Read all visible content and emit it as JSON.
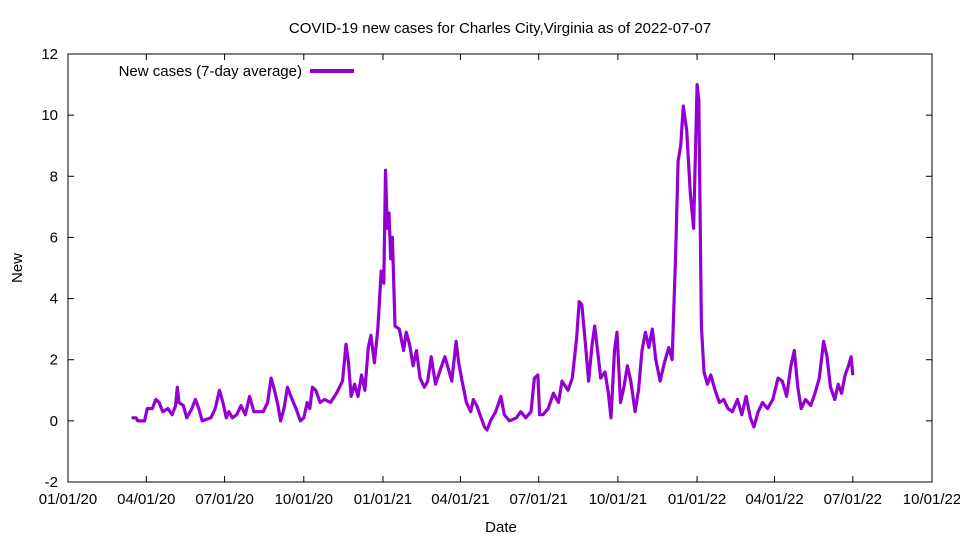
{
  "chart_data": {
    "type": "line",
    "title": "COVID-19 new cases for Charles City,Virginia as of 2022-07-07",
    "xlabel": "Date",
    "ylabel": "New",
    "ylim": [
      -2,
      12
    ],
    "yticks": [
      -2,
      0,
      2,
      4,
      6,
      8,
      10,
      12
    ],
    "ytick_labels": [
      "-2",
      "0",
      "2",
      "4",
      "6",
      "8",
      "10",
      "12"
    ],
    "xlim": [
      "2020-01-01",
      "2022-10-01"
    ],
    "xticks": [
      "2020-01-01",
      "2020-04-01",
      "2020-07-01",
      "2020-10-01",
      "2021-01-01",
      "2021-04-01",
      "2021-07-01",
      "2021-10-01",
      "2022-01-01",
      "2022-04-01",
      "2022-07-01",
      "2022-10-01"
    ],
    "xtick_labels": [
      "01/01/20",
      "04/01/20",
      "07/01/20",
      "10/01/20",
      "01/01/21",
      "04/01/21",
      "07/01/21",
      "10/01/21",
      "01/01/22",
      "04/01/22",
      "07/01/22",
      "10/01/22"
    ],
    "legend_position": "top-left",
    "grid": false,
    "series": [
      {
        "name": "New cases (7-day average)",
        "color": "#9400d3",
        "points": [
          [
            "2020-03-15",
            0.1
          ],
          [
            "2020-03-20",
            0.1
          ],
          [
            "2020-03-22",
            0.0
          ],
          [
            "2020-03-30",
            0.0
          ],
          [
            "2020-04-02",
            0.4
          ],
          [
            "2020-04-08",
            0.4
          ],
          [
            "2020-04-12",
            0.7
          ],
          [
            "2020-04-16",
            0.6
          ],
          [
            "2020-04-20",
            0.3
          ],
          [
            "2020-04-26",
            0.4
          ],
          [
            "2020-05-01",
            0.2
          ],
          [
            "2020-05-05",
            0.5
          ],
          [
            "2020-05-07",
            1.1
          ],
          [
            "2020-05-09",
            0.6
          ],
          [
            "2020-05-14",
            0.5
          ],
          [
            "2020-05-18",
            0.1
          ],
          [
            "2020-05-24",
            0.4
          ],
          [
            "2020-05-28",
            0.7
          ],
          [
            "2020-06-01",
            0.4
          ],
          [
            "2020-06-05",
            0.0
          ],
          [
            "2020-06-15",
            0.1
          ],
          [
            "2020-06-20",
            0.4
          ],
          [
            "2020-06-25",
            1.0
          ],
          [
            "2020-06-29",
            0.6
          ],
          [
            "2020-07-03",
            0.1
          ],
          [
            "2020-07-06",
            0.3
          ],
          [
            "2020-07-10",
            0.1
          ],
          [
            "2020-07-15",
            0.2
          ],
          [
            "2020-07-20",
            0.5
          ],
          [
            "2020-07-25",
            0.2
          ],
          [
            "2020-07-30",
            0.8
          ],
          [
            "2020-08-04",
            0.3
          ],
          [
            "2020-08-15",
            0.3
          ],
          [
            "2020-08-20",
            0.6
          ],
          [
            "2020-08-24",
            1.4
          ],
          [
            "2020-08-28",
            1.0
          ],
          [
            "2020-09-01",
            0.5
          ],
          [
            "2020-09-04",
            0.0
          ],
          [
            "2020-09-08",
            0.4
          ],
          [
            "2020-09-12",
            1.1
          ],
          [
            "2020-09-16",
            0.8
          ],
          [
            "2020-09-22",
            0.4
          ],
          [
            "2020-09-27",
            0.0
          ],
          [
            "2020-10-01",
            0.1
          ],
          [
            "2020-10-05",
            0.6
          ],
          [
            "2020-10-08",
            0.4
          ],
          [
            "2020-10-11",
            1.1
          ],
          [
            "2020-10-15",
            1.0
          ],
          [
            "2020-10-20",
            0.6
          ],
          [
            "2020-10-25",
            0.7
          ],
          [
            "2020-11-01",
            0.6
          ],
          [
            "2020-11-08",
            0.9
          ],
          [
            "2020-11-15",
            1.3
          ],
          [
            "2020-11-19",
            2.5
          ],
          [
            "2020-11-22",
            1.9
          ],
          [
            "2020-11-25",
            0.8
          ],
          [
            "2020-11-29",
            1.2
          ],
          [
            "2020-12-03",
            0.8
          ],
          [
            "2020-12-07",
            1.5
          ],
          [
            "2020-12-11",
            1.0
          ],
          [
            "2020-12-15",
            2.4
          ],
          [
            "2020-12-18",
            2.8
          ],
          [
            "2020-12-22",
            1.9
          ],
          [
            "2020-12-26",
            3.0
          ],
          [
            "2020-12-30",
            4.9
          ],
          [
            "2021-01-02",
            4.5
          ],
          [
            "2021-01-04",
            8.2
          ],
          [
            "2021-01-06",
            6.3
          ],
          [
            "2021-01-08",
            6.8
          ],
          [
            "2021-01-10",
            5.3
          ],
          [
            "2021-01-12",
            6.0
          ],
          [
            "2021-01-15",
            3.1
          ],
          [
            "2021-01-20",
            3.0
          ],
          [
            "2021-01-25",
            2.3
          ],
          [
            "2021-01-28",
            2.9
          ],
          [
            "2021-02-01",
            2.5
          ],
          [
            "2021-02-05",
            1.8
          ],
          [
            "2021-02-09",
            2.3
          ],
          [
            "2021-02-13",
            1.4
          ],
          [
            "2021-02-18",
            1.1
          ],
          [
            "2021-02-22",
            1.3
          ],
          [
            "2021-02-26",
            2.1
          ],
          [
            "2021-03-03",
            1.2
          ],
          [
            "2021-03-09",
            1.7
          ],
          [
            "2021-03-14",
            2.1
          ],
          [
            "2021-03-18",
            1.7
          ],
          [
            "2021-03-22",
            1.3
          ],
          [
            "2021-03-27",
            2.6
          ],
          [
            "2021-03-30",
            1.9
          ],
          [
            "2021-04-03",
            1.3
          ],
          [
            "2021-04-08",
            0.6
          ],
          [
            "2021-04-13",
            0.3
          ],
          [
            "2021-04-16",
            0.7
          ],
          [
            "2021-04-20",
            0.5
          ],
          [
            "2021-04-25",
            0.1
          ],
          [
            "2021-04-29",
            -0.2
          ],
          [
            "2021-05-02",
            -0.3
          ],
          [
            "2021-05-06",
            0.0
          ],
          [
            "2021-05-12",
            0.3
          ],
          [
            "2021-05-18",
            0.8
          ],
          [
            "2021-05-22",
            0.2
          ],
          [
            "2021-05-28",
            0.0
          ],
          [
            "2021-06-05",
            0.1
          ],
          [
            "2021-06-10",
            0.3
          ],
          [
            "2021-06-16",
            0.1
          ],
          [
            "2021-06-22",
            0.3
          ],
          [
            "2021-06-26",
            1.4
          ],
          [
            "2021-06-30",
            1.5
          ],
          [
            "2021-07-02",
            0.2
          ],
          [
            "2021-07-06",
            0.2
          ],
          [
            "2021-07-12",
            0.4
          ],
          [
            "2021-07-18",
            0.9
          ],
          [
            "2021-07-24",
            0.6
          ],
          [
            "2021-07-28",
            1.3
          ],
          [
            "2021-08-04",
            1.0
          ],
          [
            "2021-08-09",
            1.4
          ],
          [
            "2021-08-14",
            2.7
          ],
          [
            "2021-08-17",
            3.9
          ],
          [
            "2021-08-20",
            3.8
          ],
          [
            "2021-08-24",
            2.6
          ],
          [
            "2021-08-28",
            1.3
          ],
          [
            "2021-09-01",
            2.5
          ],
          [
            "2021-09-04",
            3.1
          ],
          [
            "2021-09-07",
            2.4
          ],
          [
            "2021-09-11",
            1.4
          ],
          [
            "2021-09-16",
            1.6
          ],
          [
            "2021-09-20",
            0.9
          ],
          [
            "2021-09-23",
            0.1
          ],
          [
            "2021-09-27",
            2.3
          ],
          [
            "2021-09-30",
            2.9
          ],
          [
            "2021-10-04",
            0.6
          ],
          [
            "2021-10-08",
            1.1
          ],
          [
            "2021-10-12",
            1.8
          ],
          [
            "2021-10-16",
            1.3
          ],
          [
            "2021-10-21",
            0.3
          ],
          [
            "2021-10-25",
            1.0
          ],
          [
            "2021-10-29",
            2.3
          ],
          [
            "2021-11-02",
            2.9
          ],
          [
            "2021-11-06",
            2.4
          ],
          [
            "2021-11-10",
            3.0
          ],
          [
            "2021-11-14",
            2.0
          ],
          [
            "2021-11-19",
            1.3
          ],
          [
            "2021-11-24",
            1.9
          ],
          [
            "2021-11-29",
            2.4
          ],
          [
            "2021-12-03",
            2.0
          ],
          [
            "2021-12-07",
            5.4
          ],
          [
            "2021-12-10",
            8.5
          ],
          [
            "2021-12-13",
            9.0
          ],
          [
            "2021-12-16",
            10.3
          ],
          [
            "2021-12-20",
            9.5
          ],
          [
            "2021-12-24",
            7.5
          ],
          [
            "2021-12-28",
            6.3
          ],
          [
            "2022-01-01",
            11.0
          ],
          [
            "2022-01-03",
            10.5
          ],
          [
            "2022-01-06",
            3.1
          ],
          [
            "2022-01-09",
            1.6
          ],
          [
            "2022-01-13",
            1.2
          ],
          [
            "2022-01-17",
            1.5
          ],
          [
            "2022-01-22",
            1.0
          ],
          [
            "2022-01-27",
            0.6
          ],
          [
            "2022-02-01",
            0.7
          ],
          [
            "2022-02-06",
            0.4
          ],
          [
            "2022-02-11",
            0.3
          ],
          [
            "2022-02-17",
            0.7
          ],
          [
            "2022-02-22",
            0.2
          ],
          [
            "2022-02-27",
            0.8
          ],
          [
            "2022-03-04",
            0.1
          ],
          [
            "2022-03-08",
            -0.2
          ],
          [
            "2022-03-13",
            0.3
          ],
          [
            "2022-03-18",
            0.6
          ],
          [
            "2022-03-24",
            0.4
          ],
          [
            "2022-03-30",
            0.7
          ],
          [
            "2022-04-05",
            1.4
          ],
          [
            "2022-04-10",
            1.3
          ],
          [
            "2022-04-15",
            0.8
          ],
          [
            "2022-04-20",
            1.8
          ],
          [
            "2022-04-24",
            2.3
          ],
          [
            "2022-04-28",
            1.1
          ],
          [
            "2022-05-02",
            0.4
          ],
          [
            "2022-05-07",
            0.7
          ],
          [
            "2022-05-13",
            0.5
          ],
          [
            "2022-05-18",
            0.9
          ],
          [
            "2022-05-23",
            1.4
          ],
          [
            "2022-05-28",
            2.6
          ],
          [
            "2022-06-01",
            2.1
          ],
          [
            "2022-06-05",
            1.1
          ],
          [
            "2022-06-10",
            0.7
          ],
          [
            "2022-06-14",
            1.2
          ],
          [
            "2022-06-18",
            0.9
          ],
          [
            "2022-06-22",
            1.5
          ],
          [
            "2022-06-26",
            1.8
          ],
          [
            "2022-06-29",
            2.1
          ],
          [
            "2022-07-01",
            1.5
          ]
        ]
      }
    ]
  }
}
